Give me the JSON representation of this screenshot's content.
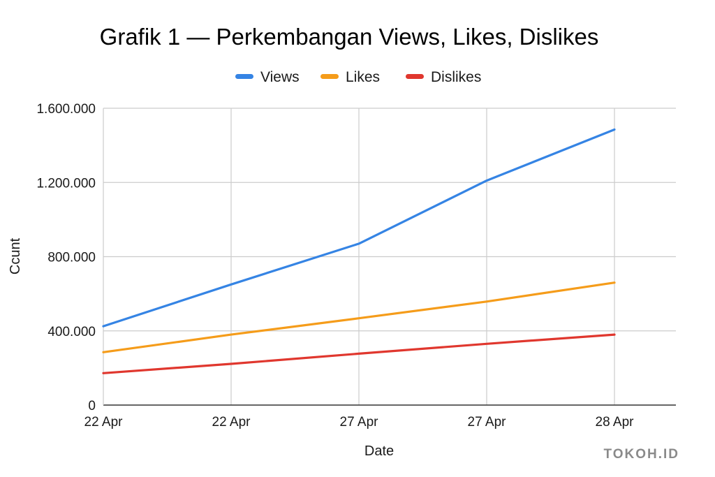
{
  "chart_data": {
    "type": "line",
    "title": "Grafik 1 — Perkembangan Views, Likes, Dislikes",
    "xlabel": "Date",
    "ylabel": "Ccunt",
    "categories": [
      "22 Apr",
      "22 Apr",
      "27 Apr",
      "27 Apr",
      "28 Apr"
    ],
    "ylim": [
      0,
      1600000
    ],
    "yticks": [
      {
        "value": 0,
        "label": "0"
      },
      {
        "value": 400000,
        "label": "400.000"
      },
      {
        "value": 800000,
        "label": "800.000"
      },
      {
        "value": 1200000,
        "label": "1.200.000"
      },
      {
        "value": 1600000,
        "label": "1.600.000"
      }
    ],
    "grid": true,
    "legend_position": "top-center",
    "series": [
      {
        "name": "Views",
        "color": "#3584e4",
        "values": [
          425000,
          650000,
          870000,
          1210000,
          1485000
        ]
      },
      {
        "name": "Likes",
        "color": "#f59c1a",
        "values": [
          285000,
          380000,
          468000,
          558000,
          660000
        ]
      },
      {
        "name": "Dislikes",
        "color": "#e0372e",
        "values": [
          172000,
          222000,
          277000,
          330000,
          380000
        ]
      }
    ]
  },
  "watermark": "TOKOH.ID"
}
